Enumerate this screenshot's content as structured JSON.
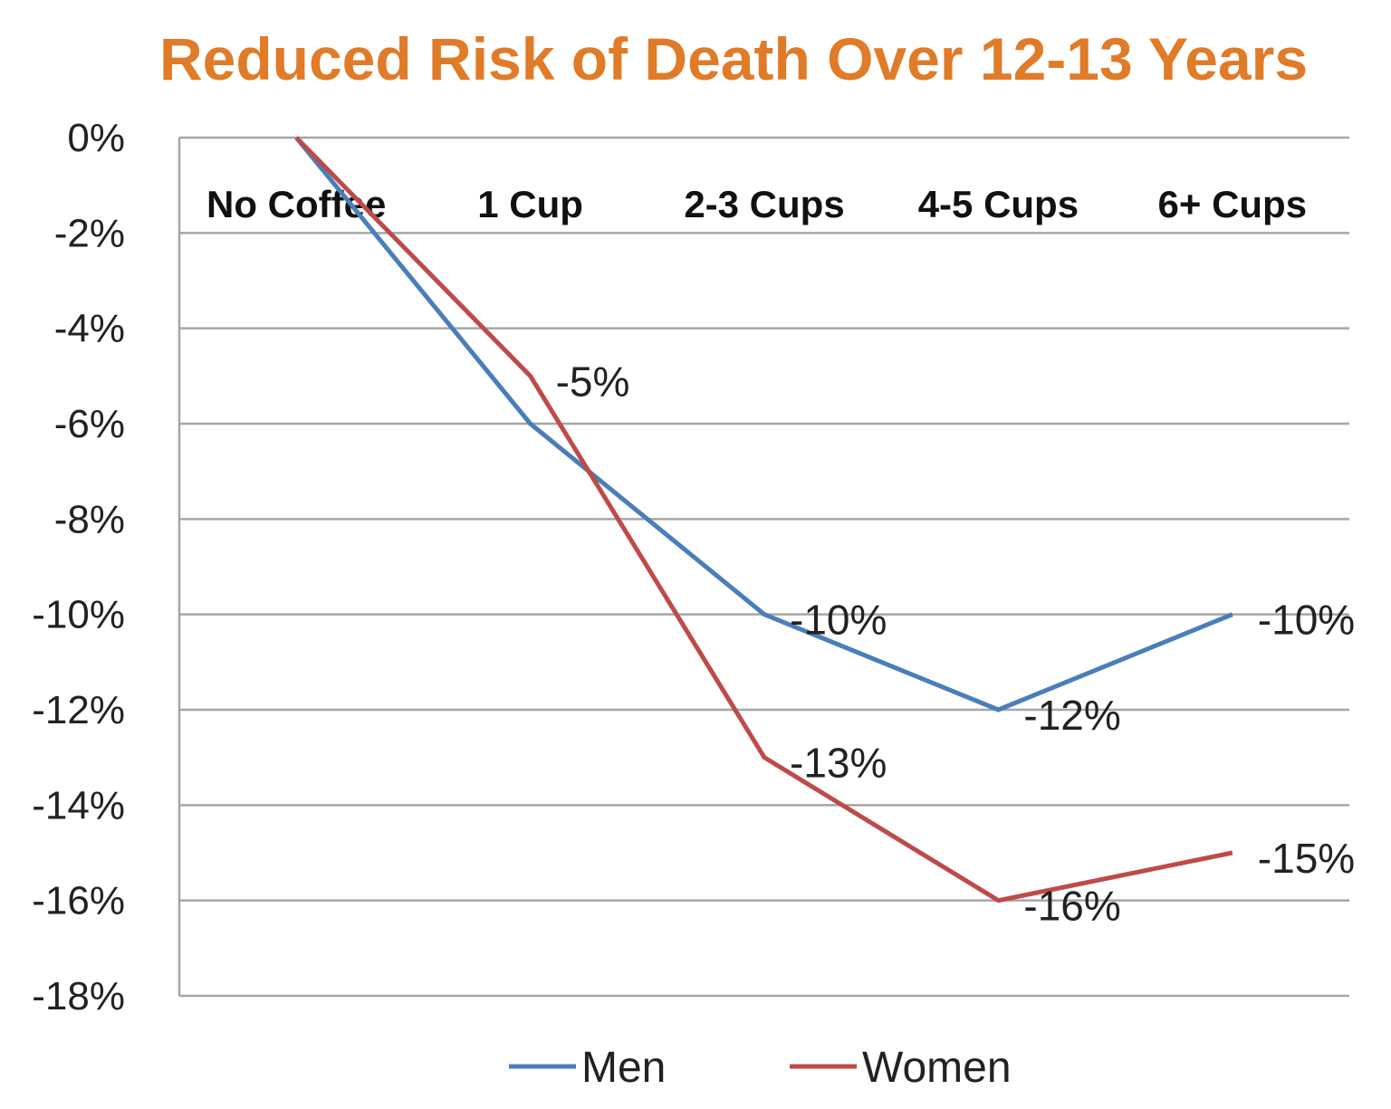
{
  "chart_data": {
    "type": "line",
    "title": "Reduced Risk of Death Over 12-13 Years",
    "categories": [
      "No Coffee",
      "1 Cup",
      "2-3 Cups",
      "4-5 Cups",
      "6+ Cups"
    ],
    "series": [
      {
        "name": "Men",
        "values": [
          0,
          -6,
          -10,
          -12,
          -10
        ],
        "color": "#4a7ebb",
        "data_labels": [
          null,
          null,
          "-10%",
          "-12%",
          "-10%"
        ]
      },
      {
        "name": "Women",
        "values": [
          0,
          -5,
          -13,
          -16,
          -15
        ],
        "color": "#be4b48",
        "data_labels": [
          null,
          "-5%",
          "-13%",
          "-16%",
          "-15%"
        ]
      }
    ],
    "ylim": [
      -18,
      0
    ],
    "yticks": [
      "0%",
      "-2%",
      "-4%",
      "-6%",
      "-8%",
      "-10%",
      "-12%",
      "-14%",
      "-16%",
      "-18%"
    ],
    "xlabel": "",
    "ylabel": "",
    "grid": true,
    "category_labels_position": "top inside plot",
    "legend_position": "bottom",
    "title_color": "#e07b28"
  }
}
